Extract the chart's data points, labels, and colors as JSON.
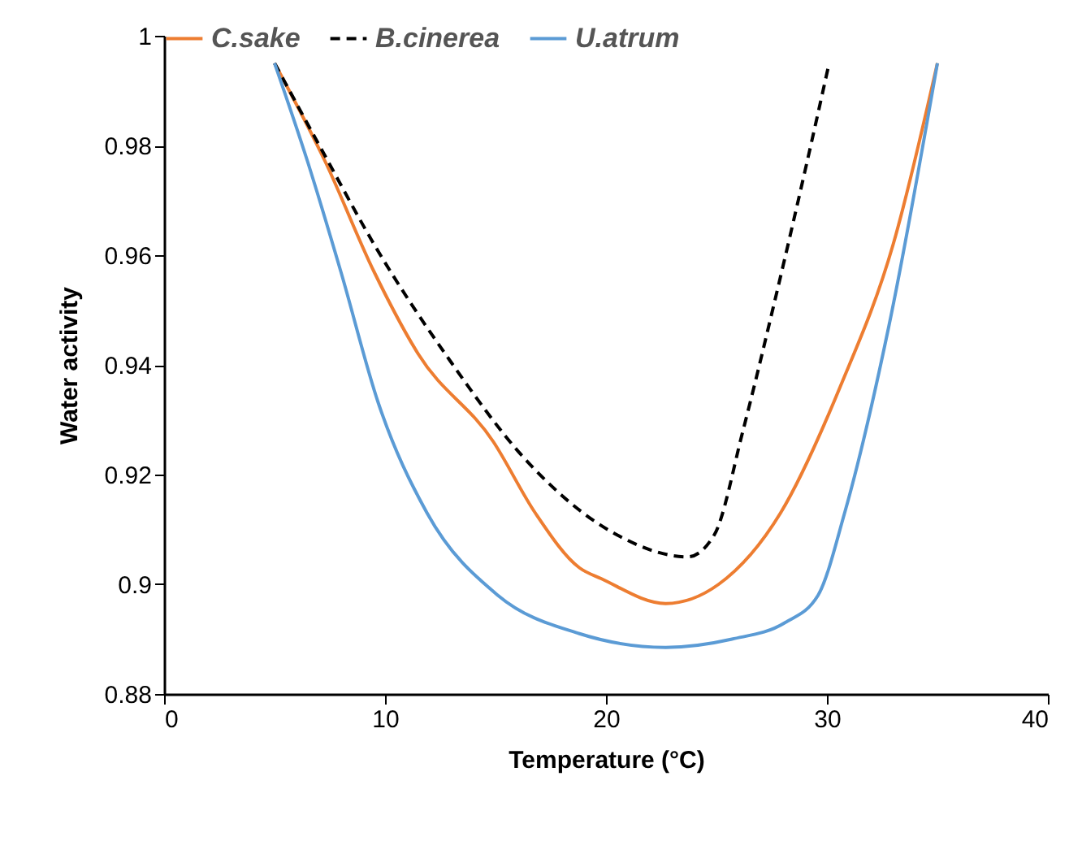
{
  "chart_data": {
    "type": "line",
    "xlabel": "Temperature (°C)",
    "ylabel": "Water activity",
    "xlim": [
      0,
      40
    ],
    "xticks": [
      0,
      10,
      20,
      30,
      40
    ],
    "ylim": [
      0.88,
      1
    ],
    "yticks": [
      0.88,
      0.9,
      0.92,
      0.94,
      0.96,
      0.98,
      1
    ],
    "grid": false,
    "legend": "top",
    "marker": "none",
    "series": [
      {
        "name": "C.sake",
        "color": "#ed7d31",
        "line_style": "solid",
        "x": [
          5,
          7.3,
          9.5,
          11.5,
          14.9,
          16.8,
          18.8,
          19.8,
          22.7,
          25.1,
          27.9,
          30.6,
          33,
          35
        ],
        "values": [
          0.995,
          0.977,
          0.957,
          0.942,
          0.926,
          0.913,
          0.903,
          0.901,
          0.8965,
          0.9,
          0.913,
          0.936,
          0.962,
          0.995
        ]
      },
      {
        "name": "B.cinerea",
        "color": "#000000",
        "line_style": "dashed",
        "x": [
          5,
          7.3,
          9.5,
          12.9,
          16.3,
          20.5,
          23.7,
          24.9,
          26.2,
          27.6,
          29.1,
          30.1
        ],
        "values": [
          0.995,
          0.978,
          0.962,
          0.941,
          0.923,
          0.909,
          0.905,
          0.909,
          0.928,
          0.951,
          0.977,
          0.995
        ]
      },
      {
        "name": "U.atrum",
        "color": "#5b9bd5",
        "line_style": "solid",
        "x": [
          5,
          6.5,
          8,
          9.7,
          11.9,
          15.1,
          18.8,
          22.7,
          25.7,
          28.1,
          29.6,
          30.8,
          32.8,
          35
        ],
        "values": [
          0.995,
          0.977,
          0.957,
          0.933,
          0.913,
          0.898,
          0.891,
          0.8885,
          0.89,
          0.893,
          0.898,
          0.913,
          0.947,
          0.995
        ]
      }
    ]
  }
}
